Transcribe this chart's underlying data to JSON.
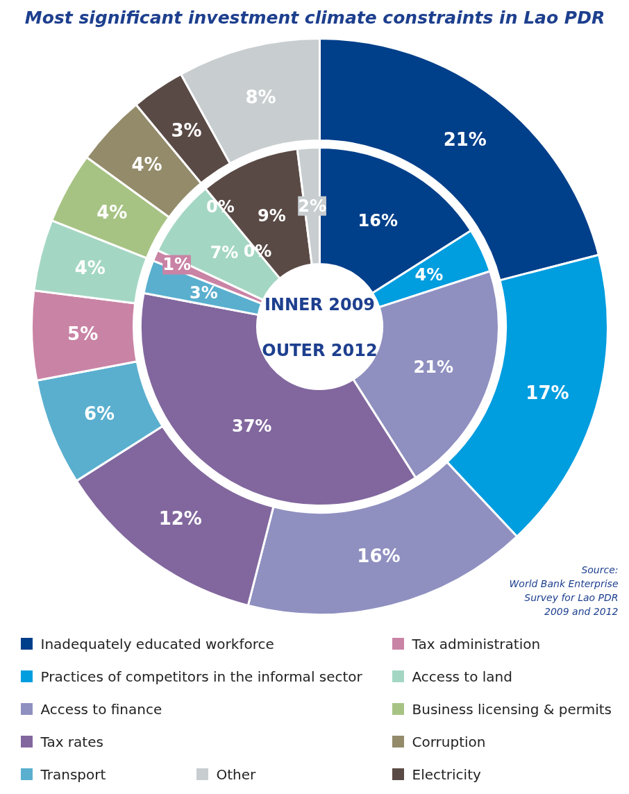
{
  "chart_data": {
    "type": "donut",
    "title": "Most significant investment climate constraints in Lao PDR",
    "categories": [
      "Inadequately educated workforce",
      "Practices of competitors in the informal sector",
      "Access to finance",
      "Tax rates",
      "Transport",
      "Tax administration",
      "Access to land",
      "Business licensing & permits",
      "Corruption",
      "Electricity",
      "Other"
    ],
    "colors": [
      "#003f8a",
      "#009ddf",
      "#8f90c0",
      "#82679e",
      "#5aafcf",
      "#c983a5",
      "#a4d7c3",
      "#a7c384",
      "#938b6a",
      "#5a4a45",
      "#c8cdd0"
    ],
    "series": [
      {
        "values": [
          16,
          4,
          21,
          37,
          3,
          1,
          7,
          0,
          0,
          9,
          2
        ],
        "value_labels": [
          "16%",
          "4%",
          "21%",
          "37%",
          "3%",
          "1%",
          "7%",
          "0%",
          "0%",
          "9%",
          "2%"
        ]
      },
      {
        "values": [
          21,
          17,
          16,
          12,
          6,
          5,
          4,
          4,
          4,
          3,
          8
        ],
        "value_labels": [
          "21%",
          "17%",
          "16%",
          "12%",
          "6%",
          "5%",
          "4%",
          "4%",
          "4%",
          "3%",
          "8%"
        ]
      }
    ],
    "legend": "bottom",
    "annotations": [
      "INNER 2009",
      "OUTER 2012",
      "Source:\nWorld Bank Enterprise\nSurvey for Lao PDR\n2009 and 2012"
    ]
  }
}
